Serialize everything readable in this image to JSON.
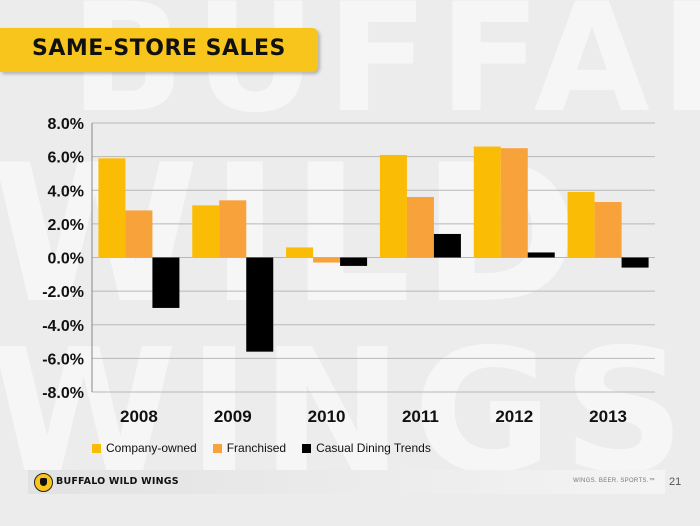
{
  "slide": {
    "title": "SAME-STORE SALES",
    "page_number": "21"
  },
  "footer": {
    "brand": "BUFFALO WILD WINGS",
    "tagline": "WINGS. BEER. SPORTS.™",
    "logo_icon": "buffalo-wild-wings-logo-icon"
  },
  "chart_data": {
    "type": "bar",
    "categories": [
      "2008",
      "2009",
      "2010",
      "2011",
      "2012",
      "2013"
    ],
    "series": [
      {
        "name": "Company-owned",
        "color": "#fbbc05",
        "values": [
          5.9,
          3.1,
          0.6,
          6.1,
          6.6,
          3.9
        ]
      },
      {
        "name": "Franchised",
        "color": "#f7a23a",
        "values": [
          2.8,
          3.4,
          -0.3,
          3.6,
          6.5,
          3.3
        ]
      },
      {
        "name": "Casual Dining Trends",
        "color": "#000000",
        "values": [
          -3.0,
          -5.6,
          -0.5,
          1.4,
          0.3,
          -0.6
        ]
      }
    ],
    "yticks": [
      "8.0%",
      "6.0%",
      "4.0%",
      "2.0%",
      "0.0%",
      "-2.0%",
      "-4.0%",
      "-6.0%",
      "-8.0%"
    ],
    "ylim": [
      -8,
      8
    ],
    "title": "",
    "xlabel": "",
    "ylabel": "",
    "legend": "bottom",
    "grid": true
  }
}
